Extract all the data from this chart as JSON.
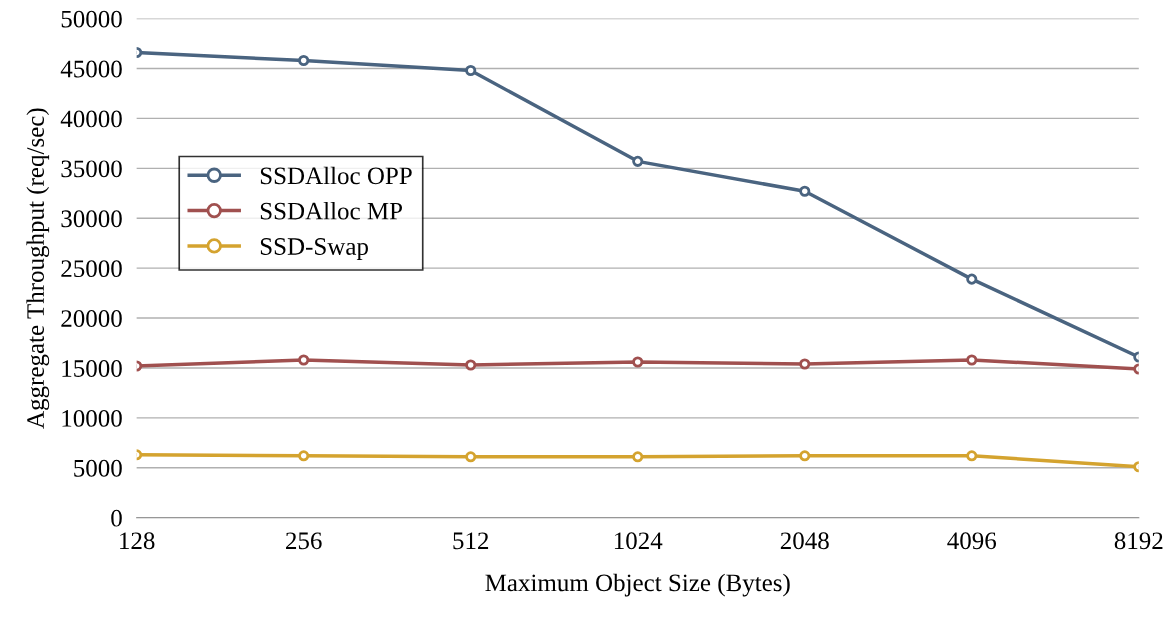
{
  "chart_data": {
    "type": "line",
    "xlabel": "Maximum Object Size (Bytes)",
    "ylabel": "Aggregate Throughput (req/sec)",
    "categories": [
      "128",
      "256",
      "512",
      "1024",
      "2048",
      "4096",
      "8192"
    ],
    "series": [
      {
        "name": "SSDAlloc OPP",
        "color": "#4a6480",
        "values": [
          46600,
          45800,
          44800,
          35700,
          32700,
          23900,
          16100
        ]
      },
      {
        "name": "SSDAlloc MP",
        "color": "#a0504f",
        "values": [
          15200,
          15800,
          15300,
          15600,
          15400,
          15800,
          14900
        ]
      },
      {
        "name": "SSD-Swap",
        "color": "#d4a32f",
        "values": [
          6300,
          6200,
          6100,
          6100,
          6200,
          6200,
          5100
        ]
      }
    ],
    "ylim": [
      0,
      50000
    ],
    "yticks": [
      0,
      5000,
      10000,
      15000,
      20000,
      25000,
      30000,
      35000,
      40000,
      45000,
      50000
    ],
    "grid": "y",
    "legend": "left",
    "marker": "circle",
    "line_style": "solid"
  }
}
